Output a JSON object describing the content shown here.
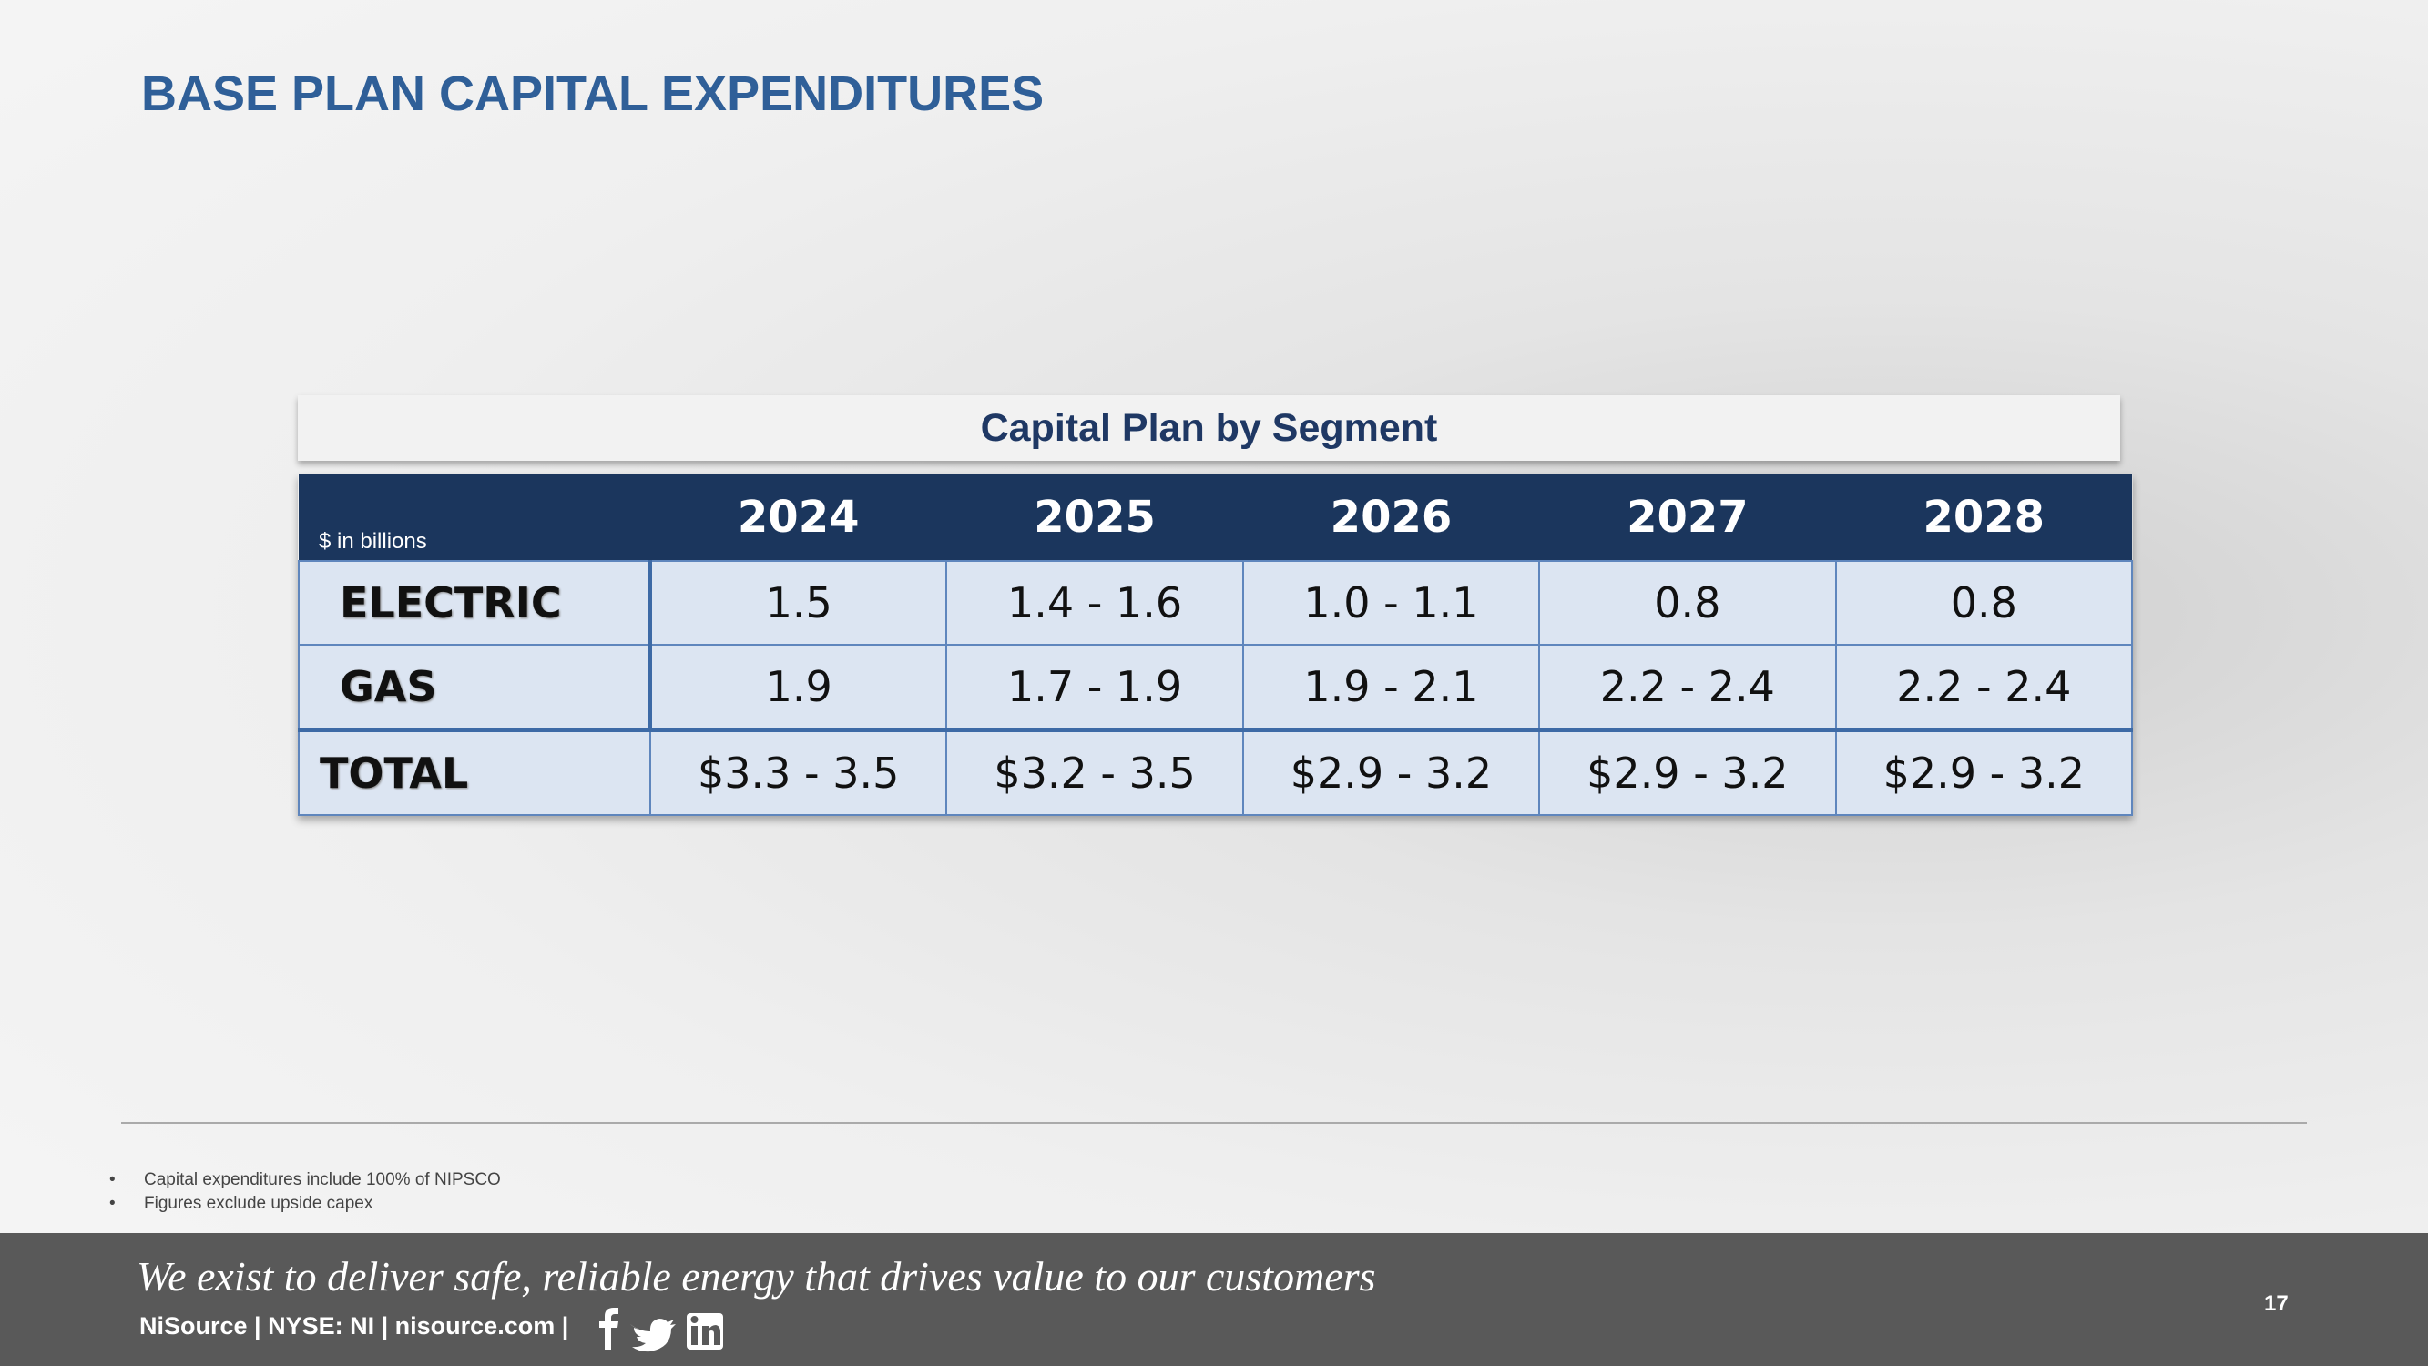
{
  "title": "BASE PLAN CAPITAL EXPENDITURES",
  "table": {
    "caption": "Capital Plan by Segment",
    "unit": "$ in billions",
    "columns": [
      "2024",
      "2025",
      "2026",
      "2027",
      "2028"
    ],
    "rows": [
      {
        "label": "ELECTRIC",
        "values": [
          "1.5",
          "1.4 - 1.6",
          "1.0 - 1.1",
          "0.8",
          "0.8"
        ]
      },
      {
        "label": "GAS",
        "values": [
          "1.9",
          "1.7 - 1.9",
          "1.9 - 2.1",
          "2.2 - 2.4",
          "2.2 - 2.4"
        ]
      },
      {
        "label": "TOTAL",
        "values": [
          "$3.3 - 3.5",
          "$3.2 - 3.5",
          "$2.9 - 3.2",
          "$2.9 - 3.2",
          "$2.9 - 3.2"
        ]
      }
    ]
  },
  "footnotes": [
    "Capital expenditures include 100% of NIPSCO",
    "Figures exclude upside capex"
  ],
  "footer": {
    "tagline": "We exist to deliver safe, reliable energy that drives value to our customers",
    "company": "NiSource | NYSE: NI | nisource.com |",
    "page": "17"
  }
}
